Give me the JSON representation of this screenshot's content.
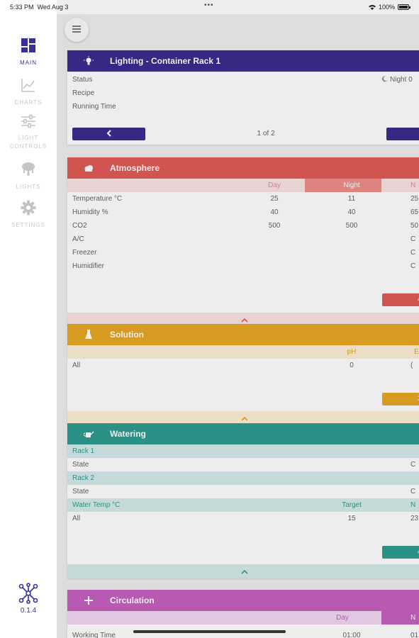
{
  "status_bar": {
    "time": "5:33 PM",
    "day": "Wed Aug 3",
    "battery": "100%"
  },
  "sidebar": {
    "items": [
      {
        "label": "MAIN",
        "icon": "dashboard-icon",
        "active": true
      },
      {
        "label": "CHARTS",
        "icon": "line-chart-icon",
        "active": false
      },
      {
        "label": "LIGHT CONTROLS",
        "label_lines": [
          "LIGHT",
          "CONTROLS"
        ],
        "icon": "sliders-icon",
        "active": false
      },
      {
        "label": "LIGHTS",
        "icon": "light-fixture-icon",
        "active": false
      },
      {
        "label": "SETTINGS",
        "icon": "gear-icon",
        "active": false
      }
    ],
    "version": "0.1.4",
    "logo_icon": "molecule-logo-icon"
  },
  "colors": {
    "purple": "#3b2d8f",
    "red": "#e05b57",
    "amber": "#e7a723",
    "teal": "#2f9d92",
    "magenta": "#c660c0",
    "night_red": "#ee8e8b"
  },
  "lighting": {
    "title": "Lighting - Container Rack 1",
    "rows": [
      {
        "label": "Status",
        "value": "Night 0"
      },
      {
        "label": "Recipe",
        "value": ""
      },
      {
        "label": "Running Time",
        "value": ""
      }
    ],
    "pager": "1 of 2"
  },
  "atmosphere": {
    "title": "Atmosphere",
    "columns": [
      "Day",
      "Night",
      "N"
    ],
    "rows": [
      {
        "label": "Temperature °C",
        "day": "25",
        "night": "11",
        "third": "25"
      },
      {
        "label": "Humidity %",
        "day": "40",
        "night": "40",
        "third": "65"
      },
      {
        "label": "CO2",
        "day": "500",
        "night": "500",
        "third": "50"
      },
      {
        "label": "A/C",
        "day": "",
        "night": "",
        "third": "C"
      },
      {
        "label": "Freezer",
        "day": "",
        "night": "",
        "third": "C"
      },
      {
        "label": "Humidifier",
        "day": "",
        "night": "",
        "third": "C"
      }
    ],
    "button_fragment": "4"
  },
  "solution": {
    "title": "Solution",
    "columns": [
      "pH",
      "E"
    ],
    "rows": [
      {
        "label": "All",
        "ph": "0",
        "third": "("
      }
    ],
    "button_fragment": "2"
  },
  "watering": {
    "title": "Watering",
    "sections": [
      {
        "head": "Rack 1",
        "row_label": "State",
        "row_value": "C"
      },
      {
        "head": "Rack 2",
        "row_label": "State",
        "row_value": "C"
      }
    ],
    "temp_header": {
      "label": "Water Temp °C",
      "col1": "Target",
      "col2": "N"
    },
    "temp_row": {
      "label": "All",
      "target": "15",
      "third": "23"
    },
    "button_fragment": "4"
  },
  "circulation": {
    "title": "Circulation",
    "columns": [
      "Day",
      "N"
    ],
    "rows": [
      {
        "label": "Working Time",
        "day": "01:00",
        "third": "01"
      }
    ]
  }
}
